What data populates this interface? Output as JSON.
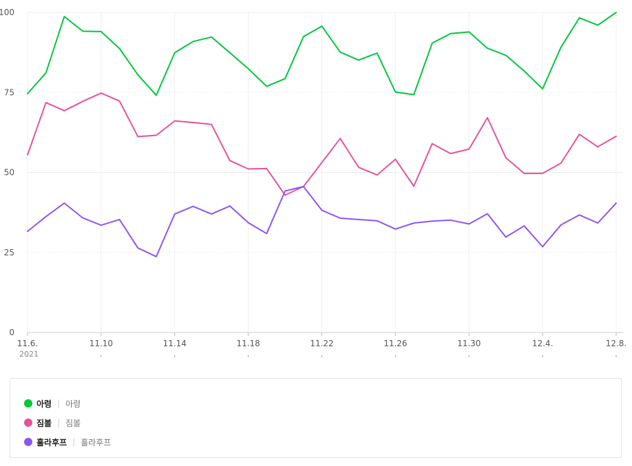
{
  "chart_data": {
    "type": "line",
    "x": [
      "11.6.",
      "11.7.",
      "11.8.",
      "11.9.",
      "11.10",
      "11.11",
      "11.12",
      "11.13",
      "11.14",
      "11.15",
      "11.16",
      "11.17",
      "11.18",
      "11.19",
      "11.20",
      "11.21",
      "11.22",
      "11.23",
      "11.24",
      "11.25",
      "11.26",
      "11.27",
      "11.28",
      "11.29",
      "11.30",
      "12.1.",
      "12.2.",
      "12.3.",
      "12.4.",
      "12.5.",
      "12.6.",
      "12.7.",
      "12.8."
    ],
    "x_tick_labels": [
      "11.6.",
      "11.10",
      "11.14",
      "11.18",
      "11.22",
      "11.26",
      "11.30",
      "12.4.",
      "12.8."
    ],
    "x_sub_label": "2021",
    "ylim": [
      0,
      100
    ],
    "y_ticks": [
      "0",
      "25",
      "50",
      "75",
      "100"
    ],
    "grid": true,
    "series": [
      {
        "name": "아령",
        "color": "#00c73c",
        "values": [
          74.6,
          81.1,
          98.7,
          94.1,
          94.0,
          88.7,
          80.5,
          74.1,
          87.4,
          90.9,
          92.3,
          87.4,
          82.4,
          76.9,
          79.3,
          92.4,
          95.7,
          87.6,
          85.1,
          87.3,
          75.1,
          74.3,
          90.4,
          93.4,
          93.9,
          88.8,
          86.6,
          81.7,
          76.1,
          89.1,
          98.3,
          96.0,
          100.0
        ]
      },
      {
        "name": "짐볼",
        "color": "#e7519a",
        "values": [
          55.5,
          71.8,
          69.3,
          72.2,
          74.8,
          72.3,
          61.2,
          61.6,
          66.1,
          65.6,
          65.0,
          53.7,
          51.1,
          51.2,
          42.9,
          45.6,
          53.1,
          60.6,
          51.6,
          49.2,
          54.1,
          45.7,
          59.0,
          55.9,
          57.3,
          67.1,
          54.6,
          49.7,
          49.7,
          52.9,
          61.9,
          58.0,
          61.3
        ]
      },
      {
        "name": "훌라후프",
        "color": "#8c55f5",
        "values": [
          31.6,
          36.2,
          40.4,
          35.8,
          33.5,
          35.3,
          26.4,
          23.7,
          37.0,
          39.4,
          37.0,
          39.5,
          34.3,
          30.9,
          44.2,
          45.6,
          38.2,
          35.7,
          35.3,
          34.9,
          32.3,
          34.2,
          34.8,
          35.1,
          33.9,
          37.1,
          29.8,
          33.3,
          26.8,
          33.6,
          36.7,
          34.2,
          40.4
        ]
      }
    ]
  },
  "legend": [
    {
      "name": "아령",
      "sub": "아령",
      "color": "#00c73c"
    },
    {
      "name": "짐볼",
      "sub": "짐볼",
      "color": "#e7519a"
    },
    {
      "name": "훌라후프",
      "sub": "훌라후프",
      "color": "#8c55f5"
    }
  ],
  "legend_separator": "|"
}
